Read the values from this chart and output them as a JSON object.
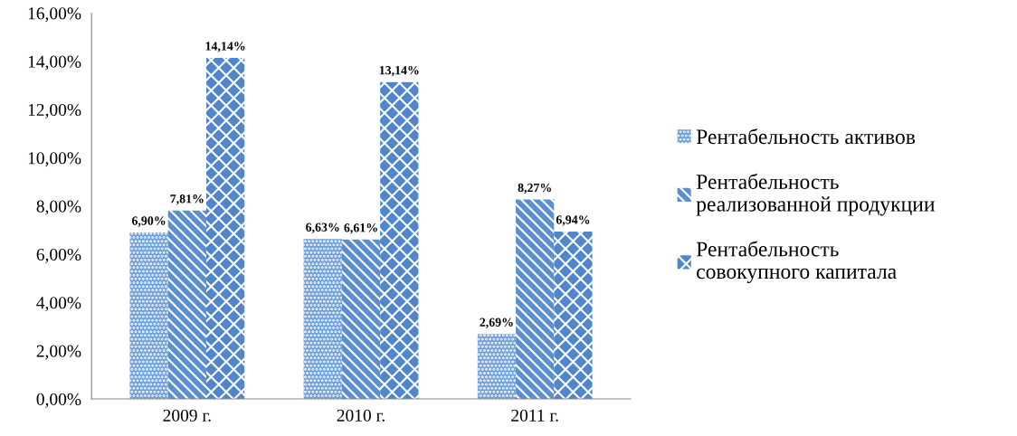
{
  "chart_data": {
    "type": "bar",
    "categories": [
      "2009 г.",
      "2010 г.",
      "2011 г."
    ],
    "series": [
      {
        "name": "Рентабельность активов",
        "color": "#6f9fd8",
        "values": [
          6.9,
          6.63,
          2.69
        ],
        "value_labels": [
          "6,90%",
          "6,63%",
          "2,69%"
        ]
      },
      {
        "name": "Рентабельность реализованной продукции",
        "color": "#5b8fd0",
        "values": [
          7.81,
          6.61,
          8.27
        ],
        "value_labels": [
          "7,81%",
          "6,61%",
          "8,27%"
        ]
      },
      {
        "name": "Рентабельность совокупного капитала",
        "color": "#4f86cc",
        "values": [
          14.14,
          13.14,
          6.94
        ],
        "value_labels": [
          "14,14%",
          "13,14%",
          "6,94%"
        ]
      }
    ],
    "ylim": [
      0,
      16
    ],
    "yticks": [
      {
        "value": 0,
        "label": "0,00%"
      },
      {
        "value": 2,
        "label": "2,00%"
      },
      {
        "value": 4,
        "label": "4,00%"
      },
      {
        "value": 6,
        "label": "6,00%"
      },
      {
        "value": 8,
        "label": "8,00%"
      },
      {
        "value": 10,
        "label": "10,00%"
      },
      {
        "value": 12,
        "label": "12,00%"
      },
      {
        "value": 14,
        "label": "14,00%"
      },
      {
        "value": 16,
        "label": "16,00%"
      }
    ],
    "grid": false,
    "legend": "right"
  }
}
